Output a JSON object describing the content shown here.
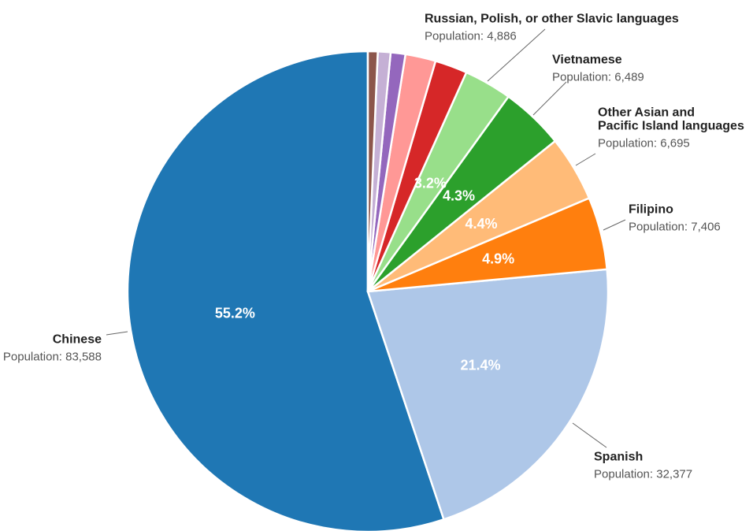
{
  "chart_data": {
    "type": "pie",
    "slices": [
      {
        "name": "Chinese",
        "value": 83588,
        "percent_label": "55.2%",
        "color": "#1f77b4",
        "population_label": "Population: 83,588"
      },
      {
        "name": "Spanish",
        "value": 32377,
        "percent_label": "21.4%",
        "color": "#aec7e8",
        "population_label": "Population: 32,377"
      },
      {
        "name": "Filipino",
        "value": 7406,
        "percent_label": "4.9%",
        "color": "#ff7f0e",
        "population_label": "Population: 7,406"
      },
      {
        "name": "Other Asian and Pacific Island languages",
        "name_lines": [
          "Other Asian and",
          "Pacific Island languages"
        ],
        "value": 6695,
        "percent_label": "4.4%",
        "color": "#ffbb78",
        "population_label": "Population: 6,695"
      },
      {
        "name": "Vietnamese",
        "value": 6489,
        "percent_label": "4.3%",
        "color": "#2ca02c",
        "population_label": "Population: 6,489"
      },
      {
        "name": "Russian, Polish, or other Slavic languages",
        "value": 4886,
        "percent_label": "3.2%",
        "color": "#98df8a",
        "population_label": "Population: 4,886"
      },
      {
        "value": 3300,
        "color": "#d62728"
      },
      {
        "value": 3100,
        "color": "#ff9896"
      },
      {
        "value": 1500,
        "color": "#9467bd"
      },
      {
        "value": 1300,
        "color": "#c5b0d5"
      },
      {
        "value": 1000,
        "color": "#8c564b"
      }
    ]
  }
}
